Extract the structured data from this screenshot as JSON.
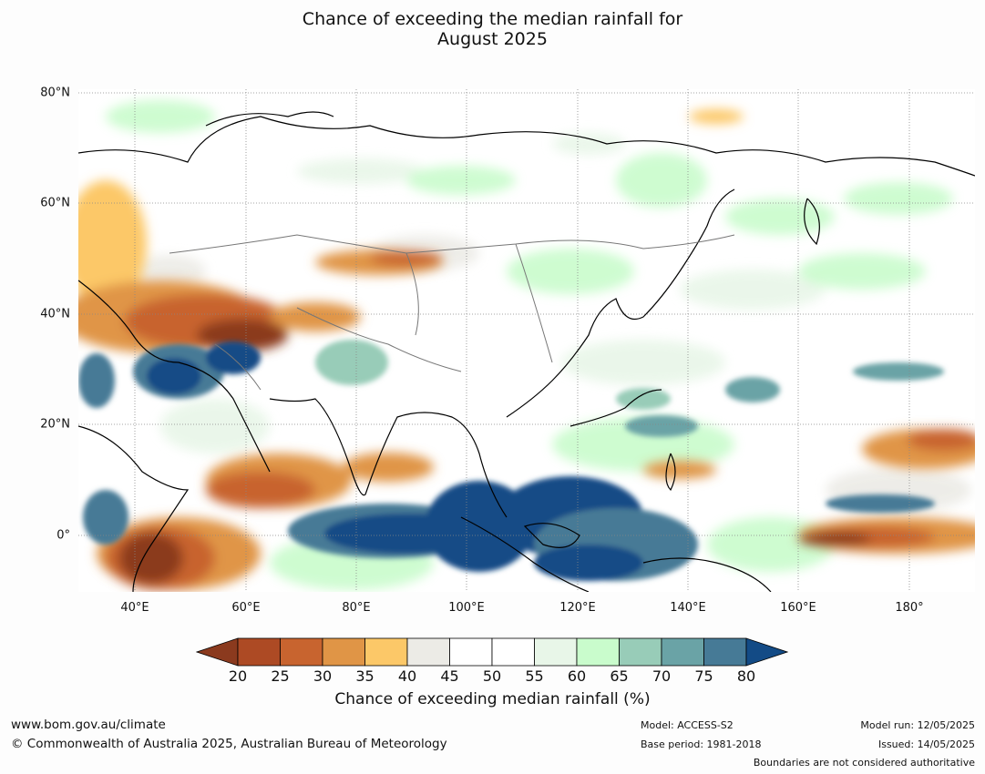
{
  "title_line1": "Chance of exceeding the median rainfall for",
  "title_line2": "August 2025",
  "lat_labels": [
    "80°N",
    "60°N",
    "40°N",
    "20°N",
    "0°"
  ],
  "lon_labels": [
    "40°E",
    "60°E",
    "80°E",
    "100°E",
    "120°E",
    "140°E",
    "160°E",
    "180°"
  ],
  "colorbar": {
    "ticks": [
      "20",
      "25",
      "30",
      "35",
      "40",
      "45",
      "50",
      "55",
      "60",
      "65",
      "70",
      "75",
      "80"
    ],
    "colors": [
      "#8b3a1e",
      "#ad4a24",
      "#c8642f",
      "#e09546",
      "#fcc868",
      "#ecebe6",
      "#ffffff",
      "#ffffff",
      "#e8f6e8",
      "#c9fccc",
      "#98ccb8",
      "#6aa3a6",
      "#467a96",
      "#134b86"
    ],
    "label": "Chance of exceeding median rainfall (%)"
  },
  "footer": {
    "website": "www.bom.gov.au/climate",
    "copyright": "© Commonwealth of Australia 2025, Australian Bureau of Meteorology",
    "model": "Model: ACCESS-S2",
    "base_period": "Base period: 1981-2018",
    "model_run": "Model run: 12/05/2025",
    "issued": "Issued: 14/05/2025",
    "disclaimer": "Boundaries are not considered authoritative"
  }
}
